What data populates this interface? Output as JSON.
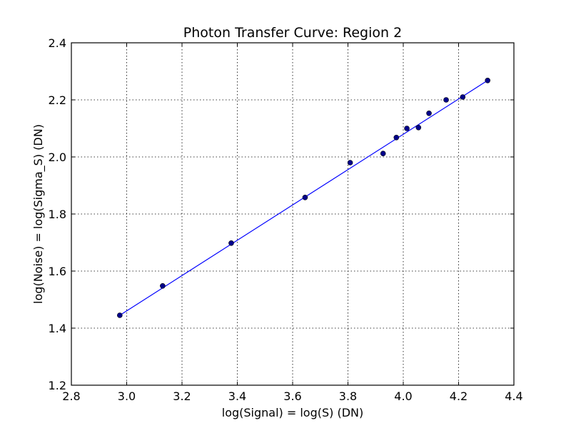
{
  "chart_data": {
    "type": "scatter",
    "title": "Photon Transfer Curve: Region 2",
    "xlabel": "log(Signal) = log(S) (DN)",
    "ylabel": "log(Noise) = log(Sigma_S) (DN)",
    "xlim": [
      2.8,
      4.4
    ],
    "ylim": [
      1.2,
      2.4
    ],
    "xticks": [
      2.8,
      3.0,
      3.2,
      3.4,
      3.6,
      3.8,
      4.0,
      4.2,
      4.4
    ],
    "yticks": [
      1.2,
      1.4,
      1.6,
      1.8,
      2.0,
      2.2,
      2.4
    ],
    "xtick_labels": [
      "2.8",
      "3.0",
      "3.2",
      "3.4",
      "3.6",
      "3.8",
      "4.0",
      "4.2",
      "4.4"
    ],
    "ytick_labels": [
      "1.2",
      "1.4",
      "1.6",
      "1.8",
      "2.0",
      "2.2",
      "2.4"
    ],
    "grid": true,
    "series": [
      {
        "type": "scatter",
        "color": "#00008b",
        "x": [
          2.975,
          3.13,
          3.378,
          3.645,
          3.808,
          3.927,
          3.975,
          4.013,
          4.055,
          4.093,
          4.155,
          4.215,
          4.305
        ],
        "y": [
          1.445,
          1.548,
          1.698,
          1.858,
          1.98,
          2.012,
          2.068,
          2.1,
          2.103,
          2.153,
          2.2,
          2.21,
          2.268
        ]
      },
      {
        "type": "line",
        "color": "#0000ff",
        "x": [
          2.975,
          4.305
        ],
        "y": [
          1.445,
          2.268
        ]
      }
    ]
  }
}
